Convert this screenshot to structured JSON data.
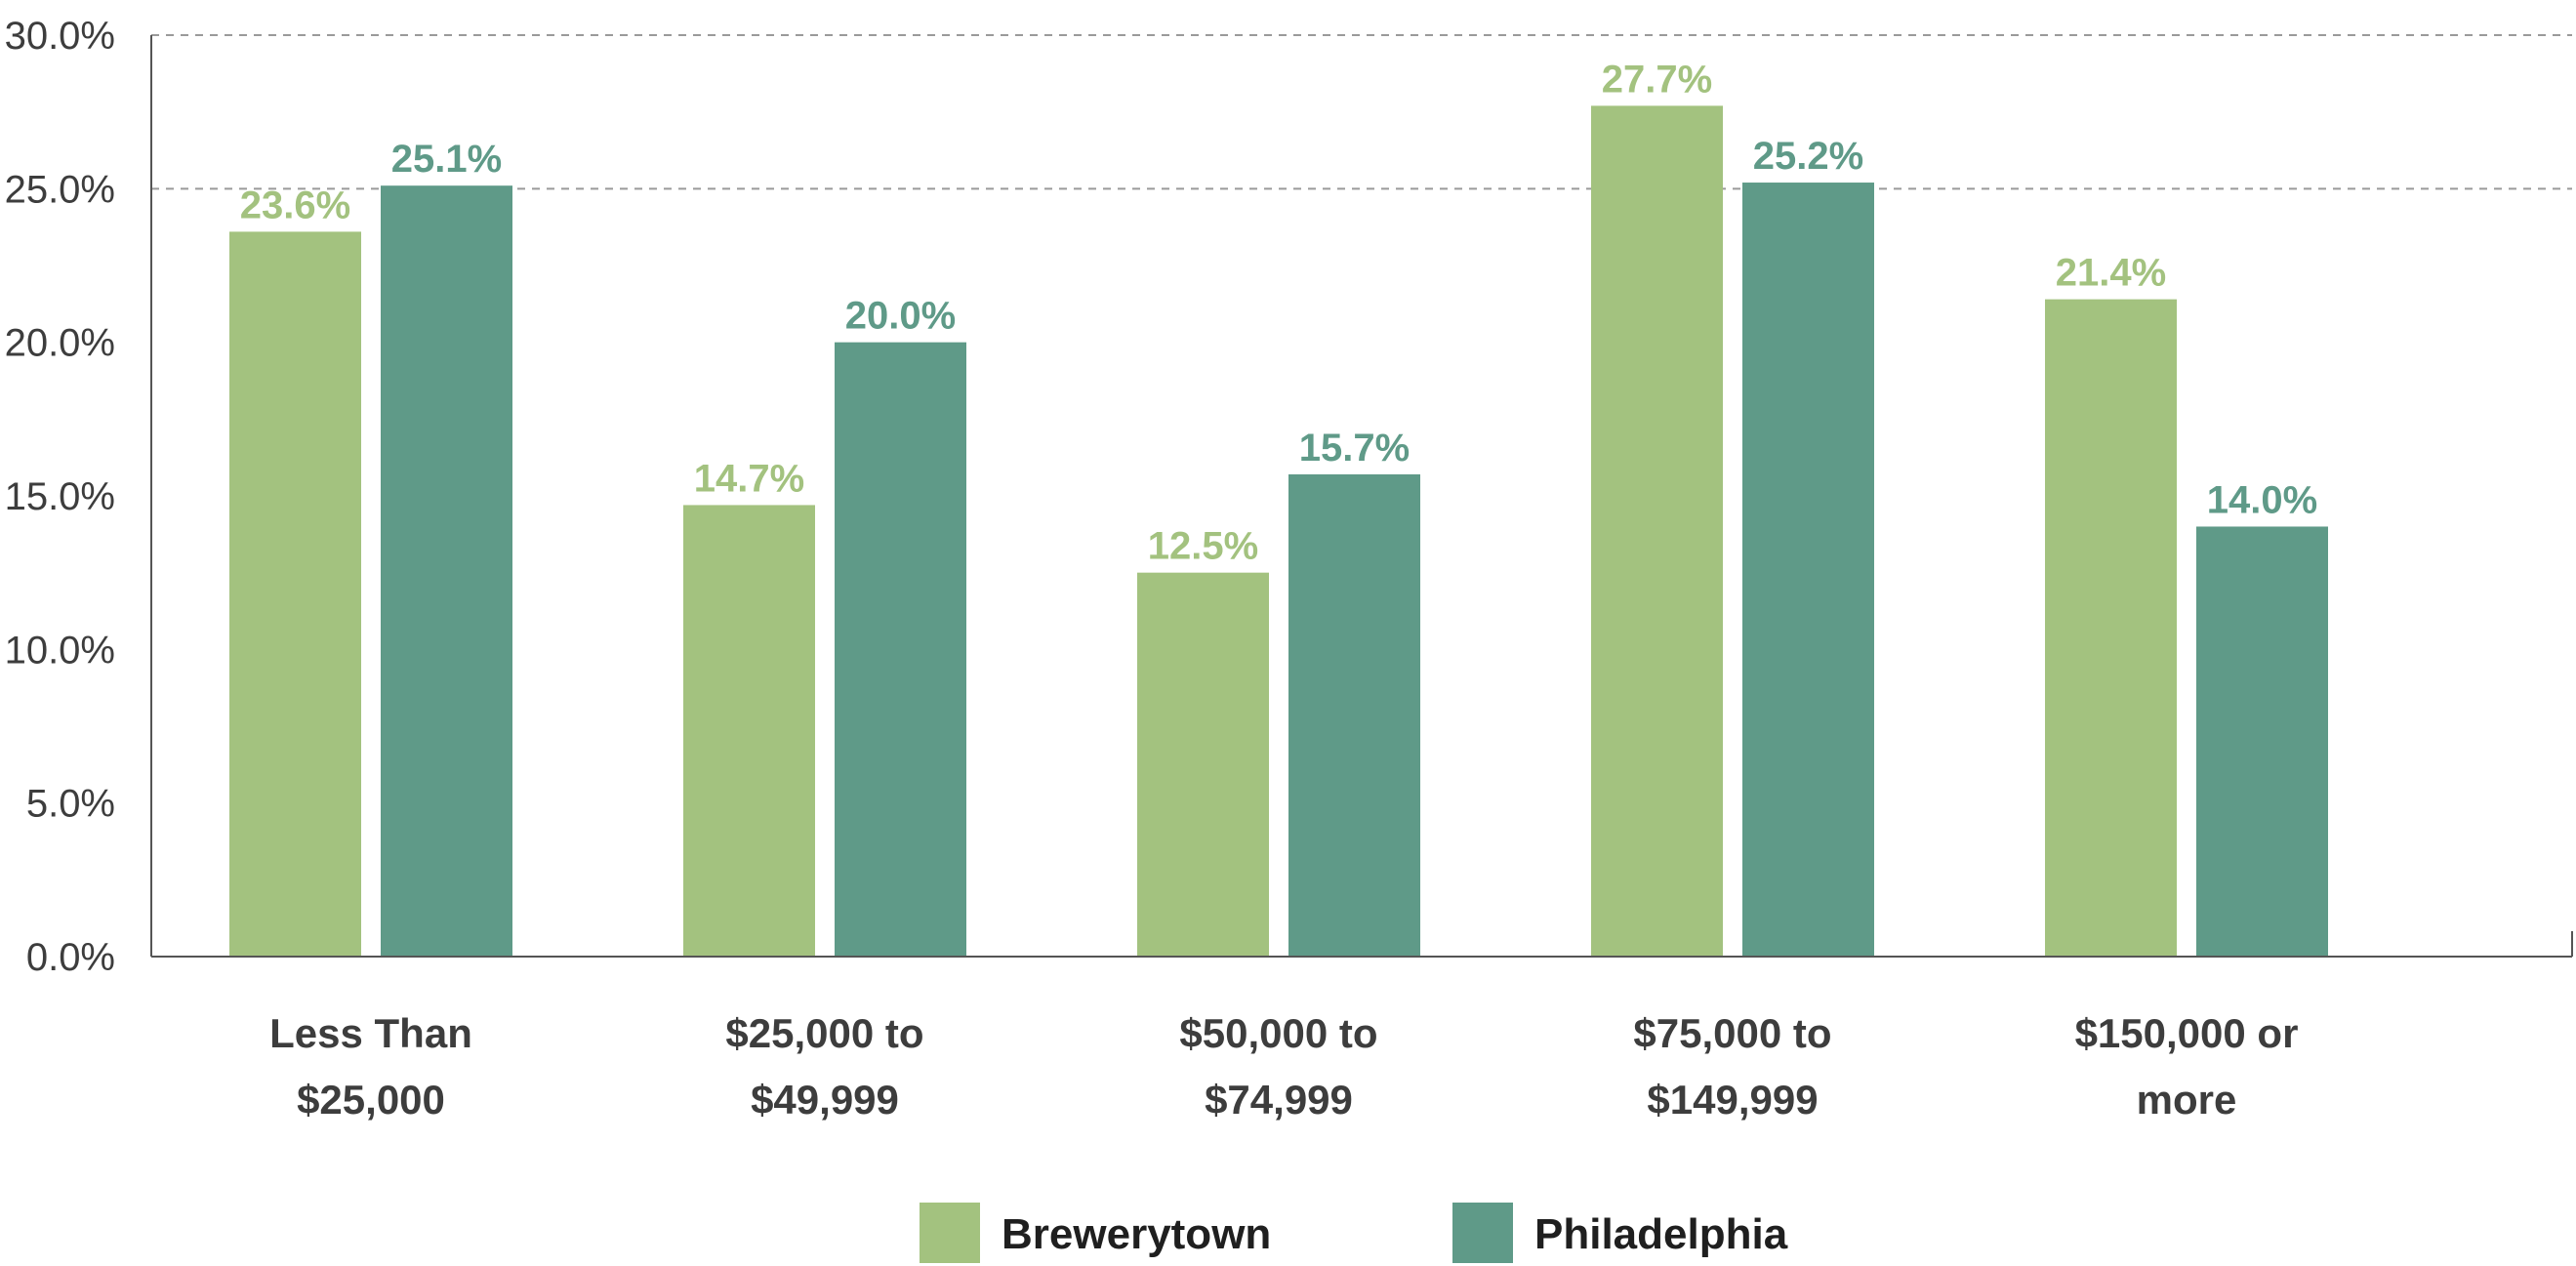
{
  "chart_data": {
    "type": "bar",
    "categories": [
      [
        "Less Than",
        "$25,000"
      ],
      [
        "$25,000 to",
        "$49,999"
      ],
      [
        "$50,000 to",
        "$74,999"
      ],
      [
        "$75,000 to",
        "$149,999"
      ],
      [
        "$150,000 or",
        "more"
      ]
    ],
    "series": [
      {
        "name": "Brewerytown",
        "color": "#a3c27f",
        "values": [
          23.6,
          14.7,
          12.5,
          27.7,
          21.4
        ],
        "labels": [
          "23.6%",
          "14.7%",
          "12.5%",
          "27.7%",
          "21.4%"
        ]
      },
      {
        "name": "Philadelphia",
        "color": "#5f9a88",
        "values": [
          25.1,
          20.0,
          15.7,
          25.2,
          14.0
        ],
        "labels": [
          "25.1%",
          "20.0%",
          "15.7%",
          "25.2%",
          "14.0%"
        ]
      }
    ],
    "y_ticks": [
      "0.0%",
      "5.0%",
      "10.0%",
      "15.0%",
      "20.0%",
      "25.0%",
      "30.0%"
    ],
    "y_tick_values": [
      0,
      5,
      10,
      15,
      20,
      25,
      30
    ],
    "ylim": [
      0,
      30
    ],
    "grid": "dashed at 25.0% and 30.0%",
    "legend_position": "bottom-center"
  }
}
